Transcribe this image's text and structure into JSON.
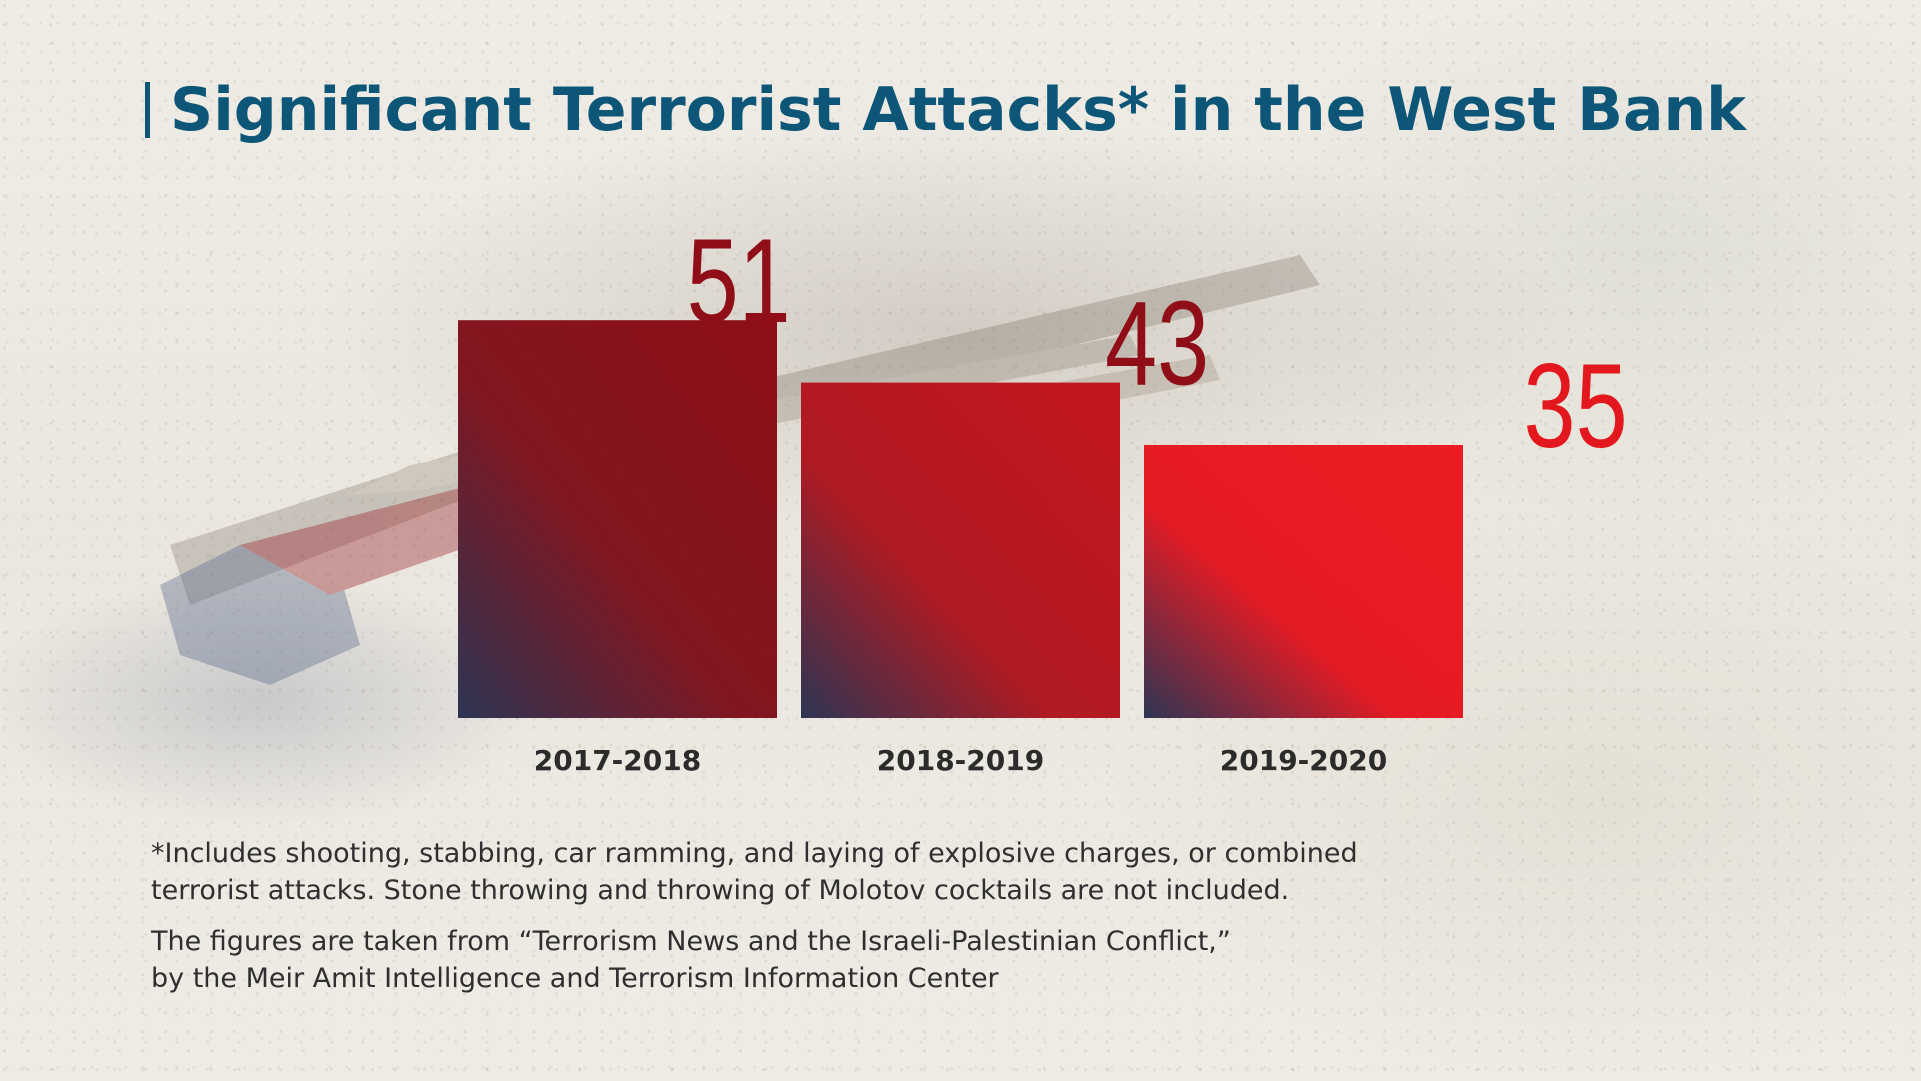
{
  "title": "Significant Terrorist Attacks* in the West Bank",
  "colors": {
    "title": "#0d5677",
    "bar_dark_red": "#8c0f17",
    "bar_mid_red": "#c2161d",
    "bar_bright_red": "#ec1c24",
    "bar_navy": "#2c3553",
    "label_dark_red": "#8f0e17",
    "label_bright_red": "#e3181f"
  },
  "chart_data": {
    "type": "bar",
    "title": "Significant Terrorist Attacks* in the West Bank",
    "categories": [
      "2017-2018",
      "2018-2019",
      "2019-2020"
    ],
    "values": [
      51,
      43,
      35
    ],
    "data_labels": [
      "51",
      "43",
      "35"
    ],
    "xlabel": "",
    "ylabel": "",
    "grid": false
  },
  "footnotes": {
    "note_line1": "*Includes shooting, stabbing, car ramming, and laying of explosive charges, or combined",
    "note_line2": "terrorist attacks. Stone throwing and throwing of Molotov cocktails are not included.",
    "source_line1": "The figures are taken from “Terrorism News and the Israeli-Palestinian Conflict,”",
    "source_line2": "by the Meir Amit Intelligence and Terrorism Information Center"
  }
}
